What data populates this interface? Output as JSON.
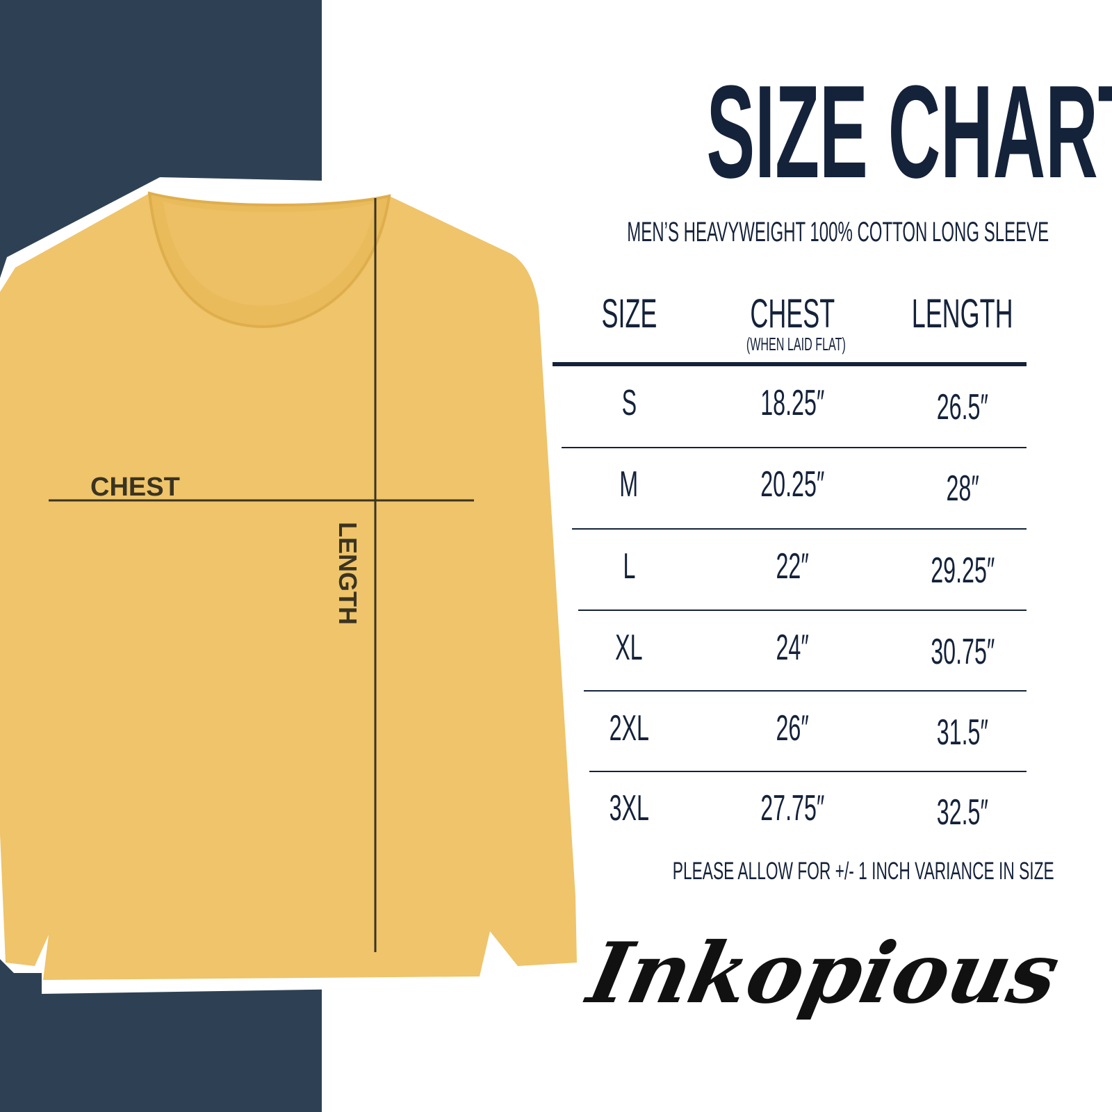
{
  "title": "SIZE CHART",
  "subtitle": "MEN’S HEAVYWEIGHT 100% COTTON LONG SLEEVE",
  "colors": {
    "panel": "#2e4154",
    "shirt": "#efc46a",
    "text": "#14223a"
  },
  "diagram": {
    "chest_label": "CHEST",
    "length_label": "LENGTH"
  },
  "chart_data": {
    "type": "table",
    "columns": [
      {
        "label": "SIZE"
      },
      {
        "label": "CHEST",
        "sublabel": "(WHEN LAID FLAT)"
      },
      {
        "label": "LENGTH"
      }
    ],
    "rows": [
      {
        "size": "S",
        "chest": "18.25″",
        "length": "26.5″"
      },
      {
        "size": "M",
        "chest": "20.25″",
        "length": "28″"
      },
      {
        "size": "L",
        "chest": "22″",
        "length": "29.25″"
      },
      {
        "size": "XL",
        "chest": "24″",
        "length": "30.75″"
      },
      {
        "size": "2XL",
        "chest": "26″",
        "length": "31.5″"
      },
      {
        "size": "3XL",
        "chest": "27.75″",
        "length": "32.5″"
      }
    ]
  },
  "note": "PLEASE ALLOW FOR +/- 1 INCH VARIANCE IN SIZE",
  "logo": "Inkopious"
}
